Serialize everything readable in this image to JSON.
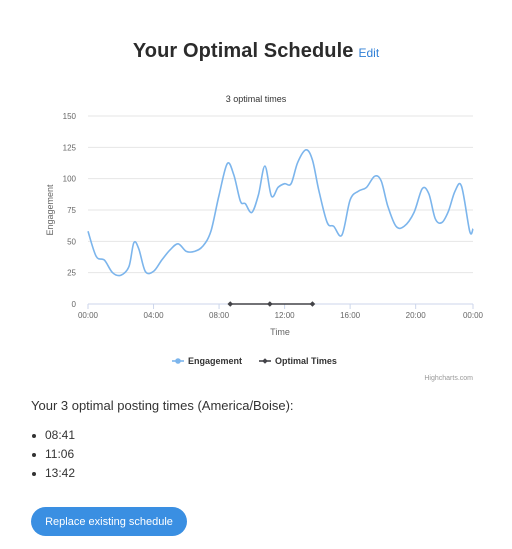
{
  "header": {
    "title": "Your Optimal Schedule",
    "edit_label": "Edit"
  },
  "chart_data": {
    "type": "line",
    "title": "3 optimal times",
    "xlabel": "Time",
    "ylabel": "Engagement",
    "ylim": [
      0,
      150
    ],
    "yticks": [
      0,
      25,
      50,
      75,
      100,
      125,
      150
    ],
    "xlim_hours": [
      0,
      23.5
    ],
    "xticks": [
      "00:00",
      "04:00",
      "08:00",
      "12:00",
      "16:00",
      "20:00",
      "00:00"
    ],
    "grid": true,
    "legend_position": "bottom-center",
    "credits": "Highcharts.com",
    "series": [
      {
        "name": "Engagement",
        "color": "#7cb5ec",
        "x": [
          0.0,
          0.5,
          1.0,
          1.5,
          2.0,
          2.5,
          2.8,
          3.1,
          3.5,
          4.0,
          4.5,
          5.0,
          5.5,
          6.0,
          6.5,
          7.0,
          7.5,
          8.0,
          8.5,
          8.9,
          9.3,
          9.6,
          10.0,
          10.4,
          10.8,
          11.2,
          11.6,
          12.0,
          12.4,
          12.8,
          13.3,
          13.7,
          14.1,
          14.6,
          15.0,
          15.5,
          16.0,
          16.5,
          17.0,
          17.5,
          17.9,
          18.3,
          18.8,
          19.3,
          19.9,
          20.4,
          20.8,
          21.2,
          21.6,
          22.0,
          22.4,
          22.8,
          23.3,
          23.5
        ],
        "values": [
          58,
          38,
          35,
          25,
          23,
          30,
          49,
          44,
          26,
          26,
          35,
          43,
          48,
          42,
          42,
          46,
          58,
          87,
          112,
          103,
          82,
          80,
          73,
          87,
          110,
          86,
          93,
          96,
          96,
          113,
          123,
          115,
          90,
          65,
          62,
          55,
          83,
          90,
          93,
          102,
          98,
          78,
          62,
          62,
          73,
          92,
          88,
          68,
          65,
          74,
          90,
          94,
          58,
          60
        ]
      },
      {
        "name": "Optimal Times",
        "color": "#434348",
        "x": [
          8.683,
          11.1,
          13.7
        ],
        "values": [
          0,
          0,
          0
        ]
      }
    ]
  },
  "info": {
    "text": "Your 3 optimal posting times (America/Boise):"
  },
  "times": [
    "08:41",
    "11:06",
    "13:42"
  ],
  "replace_button_label": "Replace existing schedule"
}
